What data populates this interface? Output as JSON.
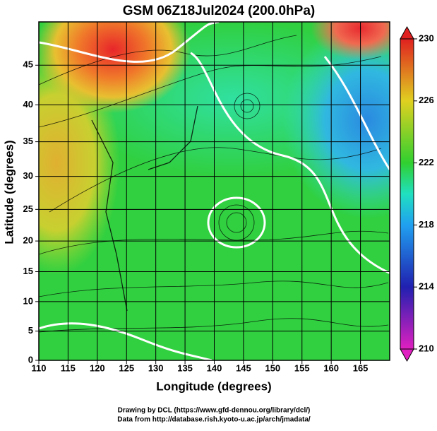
{
  "chart_data": {
    "type": "map",
    "title": "GSM 06Z18Jul2024 (200.0hPa)",
    "x_label": "Longitude (degrees)",
    "y_label": "Latitude  (degrees)",
    "projection": "mercator",
    "xlim": [
      110,
      170
    ],
    "xticks": [
      110,
      115,
      120,
      125,
      130,
      135,
      140,
      145,
      150,
      155,
      160,
      165
    ],
    "ylim": [
      0,
      50
    ],
    "yticks": [
      0,
      5,
      10,
      15,
      20,
      25,
      30,
      35,
      40,
      45
    ],
    "grid": true,
    "colorbar": {
      "lim": [
        210,
        230
      ],
      "ticks": [
        210,
        214,
        218,
        222,
        226,
        230
      ]
    }
  },
  "credits": [
    "Drawing by DCL (https://www.gfd-dennou.org/library/dcl/)",
    "Data from http://database.rish.kyoto-u.ac.jp/arch/jmadata/"
  ]
}
